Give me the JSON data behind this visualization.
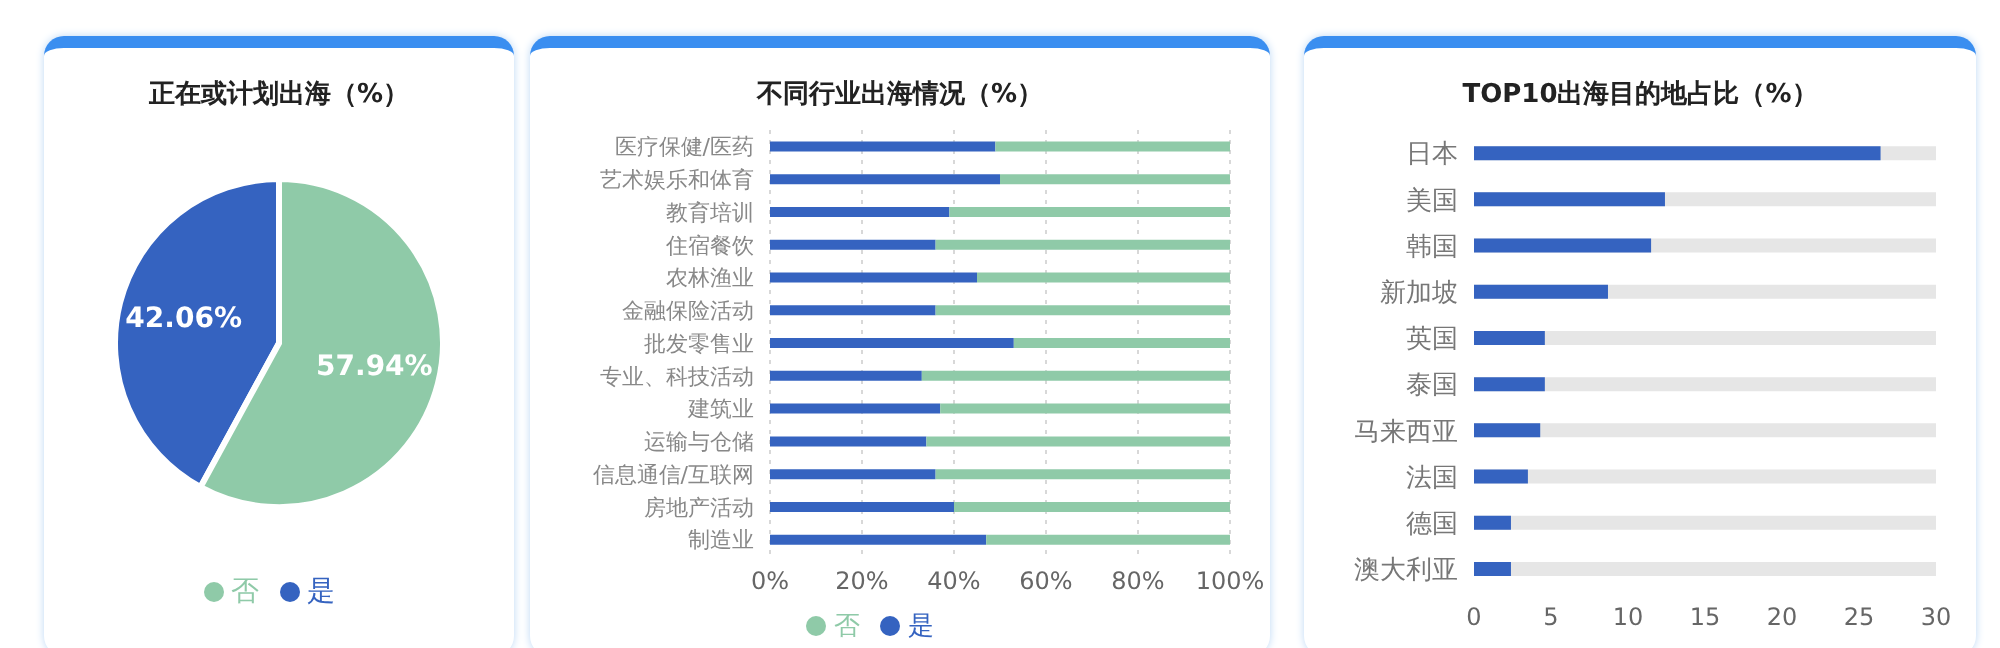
{
  "chart_data": [
    {
      "type": "pie",
      "title": "正在或计划出海（%）",
      "categories": [
        "是",
        "否"
      ],
      "values": [
        42.06,
        57.94
      ],
      "colors": [
        "#3563c0",
        "#8fcaa8"
      ],
      "value_labels": [
        "42.06%",
        "57.94%"
      ],
      "legend": "bottom"
    },
    {
      "type": "bar",
      "title": "不同行业出海情况（%）",
      "orientation": "horizontal",
      "stacked": true,
      "categories": [
        "医疗保健/医药",
        "艺术娱乐和体育",
        "教育培训",
        "住宿餐饮",
        "农林渔业",
        "金融保险活动",
        "批发零售业",
        "专业、科技活动",
        "建筑业",
        "运输与仓储",
        "信息通信/互联网",
        "房地产活动",
        "制造业"
      ],
      "series": [
        {
          "name": "是",
          "color": "#3563c0",
          "values": [
            49,
            50,
            39,
            36,
            45,
            36,
            53,
            33,
            37,
            34,
            36,
            40,
            47
          ]
        },
        {
          "name": "否",
          "color": "#8fcaa8",
          "values": [
            51,
            50,
            61,
            64,
            55,
            64,
            47,
            67,
            63,
            66,
            64,
            60,
            53
          ]
        }
      ],
      "xlim": [
        0,
        100
      ],
      "xticks": [
        {
          "value": 0,
          "label": "0%"
        },
        {
          "value": 20,
          "label": "20%"
        },
        {
          "value": 40,
          "label": "40%"
        },
        {
          "value": 60,
          "label": "60%"
        },
        {
          "value": 80,
          "label": "80%"
        },
        {
          "value": 100,
          "label": "100%"
        }
      ],
      "grid": "x",
      "legend": "bottom"
    },
    {
      "type": "bar",
      "title": "TOP10出海目的地占比（%）",
      "orientation": "horizontal",
      "categories": [
        "日本",
        "美国",
        "韩国",
        "新加坡",
        "英国",
        "泰国",
        "马来西亚",
        "法国",
        "德国",
        "澳大利亚"
      ],
      "values": [
        26.4,
        12.4,
        11.5,
        8.7,
        4.6,
        4.6,
        4.3,
        3.5,
        2.4,
        2.4
      ],
      "color": "#3563c0",
      "xlim": [
        0,
        30
      ],
      "xticks": [
        0,
        5,
        10,
        15,
        20,
        25,
        30
      ]
    }
  ]
}
